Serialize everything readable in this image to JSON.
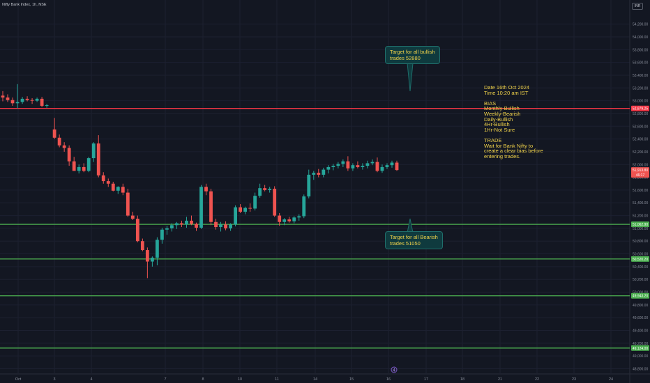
{
  "header": {
    "title": "Nifty Bank Index, 1h, NSE",
    "currency": "INR"
  },
  "annotations": {
    "bullish_callout": "Target for all bullish\ntrades 52880",
    "bearish_callout": "Target for all Bearish\ntrades 51050",
    "notes": [
      "Date 16th Oct 2024",
      "Time 10:20 am IST",
      "",
      "BIAS",
      "Monthly-Bullish",
      "Weekly-Bearish",
      "Daily-Bullish",
      "4Hr-Bullish",
      "1Hr-Not Sure",
      "",
      "TRADE",
      "Wait for Bank Nifty to",
      "create a clear bias before",
      "entering trades."
    ]
  },
  "colors": {
    "background": "#131722",
    "up": "#26a69a",
    "down": "#ef5350",
    "resistance": "#f23645",
    "support": "#4caf50",
    "text": "#f0d24a"
  },
  "chart_data": {
    "type": "candlestick",
    "title": "Nifty Bank Index, 1h, NSE",
    "currency": "INR",
    "ylim": [
      48800,
      54300
    ],
    "y_ticks": [
      "54,200.00",
      "54,000.00",
      "53,800.00",
      "53,600.00",
      "53,400.00",
      "53,200.00",
      "53,000.00",
      "52,800.00",
      "52,600.00",
      "52,400.00",
      "52,200.00",
      "52,000.00",
      "51,800.00",
      "51,600.00",
      "51,400.00",
      "51,200.00",
      "51,000.00",
      "50,800.00",
      "50,600.00",
      "50,400.00",
      "50,200.00",
      "50,000.00",
      "49,800.00",
      "49,600.00",
      "49,400.00",
      "49,200.00",
      "49,000.00",
      "48,800.00"
    ],
    "x_ticks": [
      "Oct",
      "3",
      "4",
      "7",
      "8",
      "10",
      "11",
      "14",
      "15",
      "16",
      "17",
      "18",
      "21",
      "22",
      "23",
      "24"
    ],
    "horizontal_lines": [
      {
        "price": 52879.25,
        "label": "52,879.25",
        "color": "#f23645"
      },
      {
        "price": 51062.9,
        "label": "51,062.90",
        "color": "#4caf50"
      },
      {
        "price": 50520.2,
        "label": "50,520.20",
        "color": "#4caf50"
      },
      {
        "price": 49943.2,
        "label": "49,943.20",
        "color": "#4caf50"
      },
      {
        "price": 49124.0,
        "label": "49,124.00",
        "color": "#4caf50"
      }
    ],
    "last_price": {
      "value": "51,913.80",
      "countdown": "46:17"
    },
    "candles": [
      {
        "o": 53080,
        "h": 53150,
        "l": 52990,
        "c": 53050
      },
      {
        "o": 53050,
        "h": 53100,
        "l": 52980,
        "c": 53010
      },
      {
        "o": 53010,
        "h": 53050,
        "l": 52920,
        "c": 52960
      },
      {
        "o": 52960,
        "h": 53260,
        "l": 52880,
        "c": 52980
      },
      {
        "o": 52980,
        "h": 53060,
        "l": 52950,
        "c": 53030
      },
      {
        "o": 53030,
        "h": 53070,
        "l": 52990,
        "c": 53010
      },
      {
        "o": 53010,
        "h": 53040,
        "l": 52950,
        "c": 53000
      },
      {
        "o": 53000,
        "h": 53050,
        "l": 52980,
        "c": 53030
      },
      {
        "o": 53030,
        "h": 53060,
        "l": 52900,
        "c": 52920
      },
      {
        "o": 52920,
        "h": 52950,
        "l": 52890,
        "c": 52930
      },
      {
        "o": 52550,
        "h": 52730,
        "l": 52400,
        "c": 52420
      },
      {
        "o": 52420,
        "h": 52470,
        "l": 52270,
        "c": 52300
      },
      {
        "o": 52300,
        "h": 52350,
        "l": 52200,
        "c": 52260
      },
      {
        "o": 52260,
        "h": 52300,
        "l": 51980,
        "c": 52050
      },
      {
        "o": 52050,
        "h": 52120,
        "l": 51930,
        "c": 51900
      },
      {
        "o": 51900,
        "h": 52000,
        "l": 51860,
        "c": 51960
      },
      {
        "o": 51960,
        "h": 52020,
        "l": 51880,
        "c": 51900
      },
      {
        "o": 51900,
        "h": 52120,
        "l": 51880,
        "c": 52100
      },
      {
        "o": 52100,
        "h": 52350,
        "l": 52040,
        "c": 52330
      },
      {
        "o": 52330,
        "h": 52460,
        "l": 51800,
        "c": 51830
      },
      {
        "o": 51830,
        "h": 51880,
        "l": 51700,
        "c": 51740
      },
      {
        "o": 51740,
        "h": 51780,
        "l": 51650,
        "c": 51700
      },
      {
        "o": 51700,
        "h": 51730,
        "l": 51580,
        "c": 51590
      },
      {
        "o": 51590,
        "h": 51660,
        "l": 51540,
        "c": 51650
      },
      {
        "o": 51650,
        "h": 51700,
        "l": 51520,
        "c": 51560
      },
      {
        "o": 51560,
        "h": 51620,
        "l": 51180,
        "c": 51200
      },
      {
        "o": 51200,
        "h": 51260,
        "l": 51130,
        "c": 51150
      },
      {
        "o": 51150,
        "h": 51200,
        "l": 50780,
        "c": 50800
      },
      {
        "o": 50800,
        "h": 50840,
        "l": 50640,
        "c": 50660
      },
      {
        "o": 50660,
        "h": 50700,
        "l": 50220,
        "c": 50480
      },
      {
        "o": 50480,
        "h": 50560,
        "l": 50400,
        "c": 50540
      },
      {
        "o": 50540,
        "h": 50860,
        "l": 50420,
        "c": 50820
      },
      {
        "o": 50820,
        "h": 51010,
        "l": 50760,
        "c": 50980
      },
      {
        "o": 50980,
        "h": 51040,
        "l": 50900,
        "c": 51000
      },
      {
        "o": 51000,
        "h": 51080,
        "l": 50950,
        "c": 51050
      },
      {
        "o": 51050,
        "h": 51100,
        "l": 50990,
        "c": 51080
      },
      {
        "o": 51080,
        "h": 51120,
        "l": 51020,
        "c": 51060
      },
      {
        "o": 51060,
        "h": 51180,
        "l": 51010,
        "c": 51120
      },
      {
        "o": 51120,
        "h": 51200,
        "l": 51050,
        "c": 51070
      },
      {
        "o": 51070,
        "h": 51090,
        "l": 50960,
        "c": 51010
      },
      {
        "o": 51010,
        "h": 51680,
        "l": 50990,
        "c": 51650
      },
      {
        "o": 51650,
        "h": 51700,
        "l": 51520,
        "c": 51580
      },
      {
        "o": 51580,
        "h": 51620,
        "l": 51050,
        "c": 51100
      },
      {
        "o": 51100,
        "h": 51150,
        "l": 50980,
        "c": 51020
      },
      {
        "o": 51020,
        "h": 51100,
        "l": 50950,
        "c": 51060
      },
      {
        "o": 51060,
        "h": 51110,
        "l": 50970,
        "c": 51000
      },
      {
        "o": 51000,
        "h": 51080,
        "l": 50960,
        "c": 51060
      },
      {
        "o": 51060,
        "h": 51360,
        "l": 51030,
        "c": 51330
      },
      {
        "o": 51330,
        "h": 51380,
        "l": 51240,
        "c": 51260
      },
      {
        "o": 51260,
        "h": 51340,
        "l": 51220,
        "c": 51320
      },
      {
        "o": 51320,
        "h": 51390,
        "l": 51260,
        "c": 51310
      },
      {
        "o": 51310,
        "h": 51560,
        "l": 51280,
        "c": 51510
      },
      {
        "o": 51510,
        "h": 51700,
        "l": 51480,
        "c": 51630
      },
      {
        "o": 51630,
        "h": 51680,
        "l": 51580,
        "c": 51600
      },
      {
        "o": 51600,
        "h": 51650,
        "l": 51560,
        "c": 51620
      },
      {
        "o": 51620,
        "h": 51660,
        "l": 51180,
        "c": 51200
      },
      {
        "o": 51200,
        "h": 51240,
        "l": 51040,
        "c": 51100
      },
      {
        "o": 51100,
        "h": 51160,
        "l": 51050,
        "c": 51140
      },
      {
        "o": 51140,
        "h": 51180,
        "l": 51090,
        "c": 51110
      },
      {
        "o": 51110,
        "h": 51190,
        "l": 51080,
        "c": 51170
      },
      {
        "o": 51170,
        "h": 51220,
        "l": 51120,
        "c": 51190
      },
      {
        "o": 51190,
        "h": 51530,
        "l": 51160,
        "c": 51500
      },
      {
        "o": 51500,
        "h": 51920,
        "l": 51470,
        "c": 51840
      },
      {
        "o": 51840,
        "h": 51900,
        "l": 51760,
        "c": 51870
      },
      {
        "o": 51870,
        "h": 51930,
        "l": 51800,
        "c": 51840
      },
      {
        "o": 51840,
        "h": 51950,
        "l": 51800,
        "c": 51920
      },
      {
        "o": 51920,
        "h": 51990,
        "l": 51860,
        "c": 51960
      },
      {
        "o": 51960,
        "h": 52010,
        "l": 51910,
        "c": 51980
      },
      {
        "o": 51980,
        "h": 52040,
        "l": 51940,
        "c": 52010
      },
      {
        "o": 52010,
        "h": 52080,
        "l": 51960,
        "c": 52050
      },
      {
        "o": 52050,
        "h": 52130,
        "l": 51900,
        "c": 51940
      },
      {
        "o": 51940,
        "h": 52020,
        "l": 51900,
        "c": 51990
      },
      {
        "o": 51990,
        "h": 52050,
        "l": 51940,
        "c": 51960
      },
      {
        "o": 51960,
        "h": 52020,
        "l": 51920,
        "c": 51980
      },
      {
        "o": 51980,
        "h": 52060,
        "l": 51940,
        "c": 52020
      },
      {
        "o": 52020,
        "h": 52080,
        "l": 51990,
        "c": 52040
      },
      {
        "o": 52040,
        "h": 52110,
        "l": 51880,
        "c": 51900
      },
      {
        "o": 51900,
        "h": 52000,
        "l": 51870,
        "c": 51960
      },
      {
        "o": 51960,
        "h": 52020,
        "l": 51930,
        "c": 51990
      },
      {
        "o": 51990,
        "h": 52060,
        "l": 51950,
        "c": 52030
      },
      {
        "o": 52030,
        "h": 52060,
        "l": 51900,
        "c": 51914
      }
    ]
  }
}
